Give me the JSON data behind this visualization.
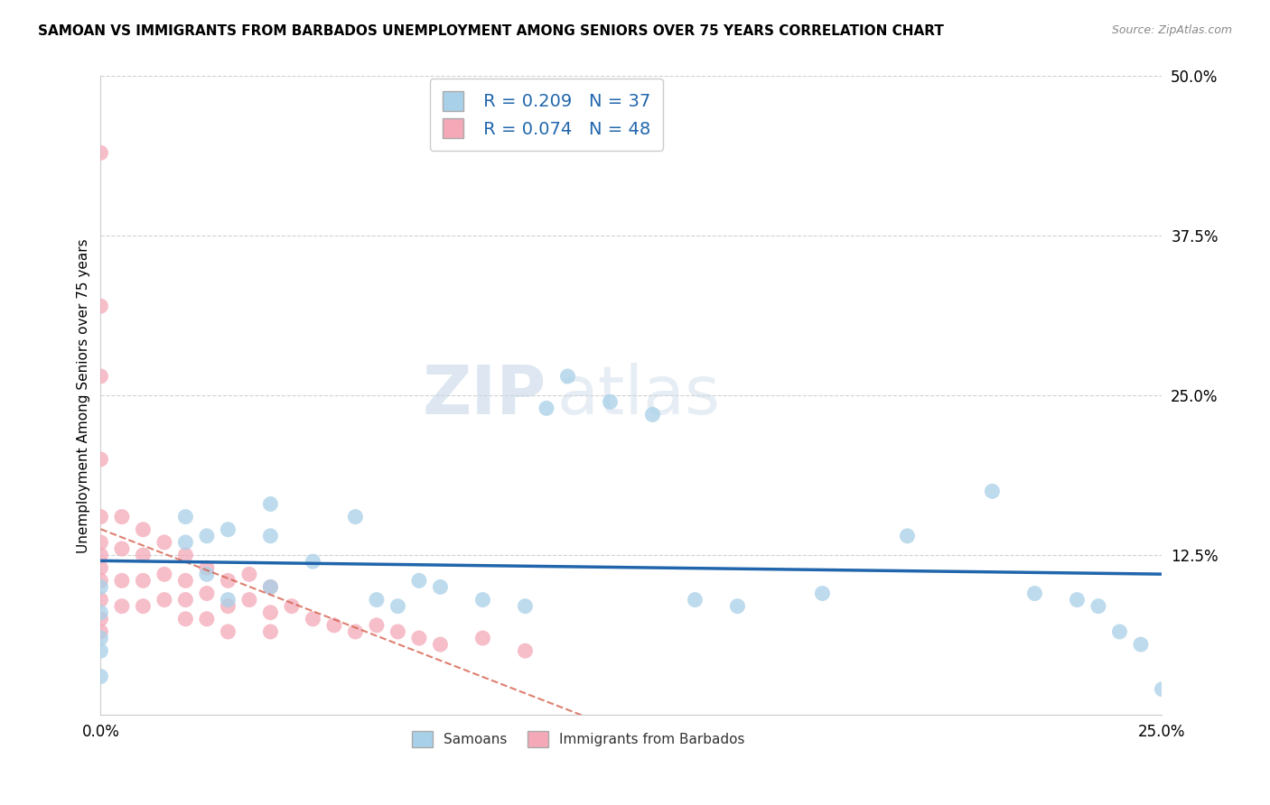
{
  "title": "SAMOAN VS IMMIGRANTS FROM BARBADOS UNEMPLOYMENT AMONG SENIORS OVER 75 YEARS CORRELATION CHART",
  "source": "Source: ZipAtlas.com",
  "ylabel": "Unemployment Among Seniors over 75 years",
  "xlim": [
    0.0,
    0.25
  ],
  "ylim": [
    0.0,
    0.5
  ],
  "legend_label_1": "Samoans",
  "legend_label_2": "Immigrants from Barbados",
  "R1": 0.209,
  "N1": 37,
  "R2": 0.074,
  "N2": 48,
  "color_blue": "#a8d0e8",
  "color_pink": "#f4a8b8",
  "color_blue_line": "#2166ac",
  "color_pink_line": "#d6604d",
  "background_color": "#ffffff",
  "watermark_zip": "ZIP",
  "watermark_atlas": "atlas",
  "samoans_x": [
    0.0,
    0.0,
    0.0,
    0.0,
    0.0,
    0.02,
    0.02,
    0.025,
    0.025,
    0.03,
    0.03,
    0.04,
    0.04,
    0.04,
    0.05,
    0.06,
    0.065,
    0.07,
    0.075,
    0.08,
    0.09,
    0.1,
    0.105,
    0.11,
    0.12,
    0.13,
    0.14,
    0.15,
    0.17,
    0.19,
    0.21,
    0.22,
    0.23,
    0.235,
    0.24,
    0.245,
    0.25
  ],
  "samoans_y": [
    0.1,
    0.08,
    0.06,
    0.05,
    0.03,
    0.155,
    0.135,
    0.14,
    0.11,
    0.145,
    0.09,
    0.165,
    0.14,
    0.1,
    0.12,
    0.155,
    0.09,
    0.085,
    0.105,
    0.1,
    0.09,
    0.085,
    0.24,
    0.265,
    0.245,
    0.235,
    0.09,
    0.085,
    0.095,
    0.14,
    0.175,
    0.095,
    0.09,
    0.085,
    0.065,
    0.055,
    0.02
  ],
  "barbados_x": [
    0.0,
    0.0,
    0.0,
    0.0,
    0.0,
    0.0,
    0.0,
    0.0,
    0.0,
    0.0,
    0.0,
    0.0,
    0.005,
    0.005,
    0.005,
    0.005,
    0.01,
    0.01,
    0.01,
    0.01,
    0.015,
    0.015,
    0.015,
    0.02,
    0.02,
    0.02,
    0.02,
    0.025,
    0.025,
    0.025,
    0.03,
    0.03,
    0.03,
    0.035,
    0.035,
    0.04,
    0.04,
    0.04,
    0.045,
    0.05,
    0.055,
    0.06,
    0.065,
    0.07,
    0.075,
    0.08,
    0.09,
    0.1
  ],
  "barbados_y": [
    0.44,
    0.32,
    0.265,
    0.2,
    0.155,
    0.135,
    0.125,
    0.115,
    0.105,
    0.09,
    0.075,
    0.065,
    0.155,
    0.13,
    0.105,
    0.085,
    0.145,
    0.125,
    0.105,
    0.085,
    0.135,
    0.11,
    0.09,
    0.125,
    0.105,
    0.09,
    0.075,
    0.115,
    0.095,
    0.075,
    0.105,
    0.085,
    0.065,
    0.11,
    0.09,
    0.1,
    0.08,
    0.065,
    0.085,
    0.075,
    0.07,
    0.065,
    0.07,
    0.065,
    0.06,
    0.055,
    0.06,
    0.05
  ]
}
